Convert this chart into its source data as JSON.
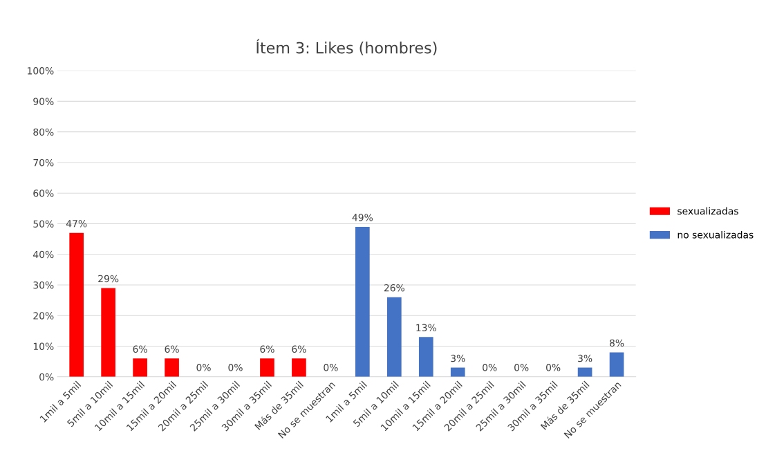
{
  "chart_data": {
    "type": "bar",
    "title": "Ítem 3: Likes (hombres)",
    "categories": [
      "1mil a 5mil",
      "5mil a 10mil",
      "10mil a 15mil",
      "15mil a 20mil",
      "20mil a 25mil",
      "25mil a 30mil",
      "30mil a 35mil",
      "Más de 35mil",
      "No se muestran",
      "1mil a 5mil",
      "5mil a 10mil",
      "10mil a 15mil",
      "15mil a 20mil",
      "20mil a 25mil",
      "25mil a 30mil",
      "30mil a 35mil",
      "Más de 35mil",
      "No se muestran"
    ],
    "series": [
      {
        "name": "sexualizadas",
        "color": "#ff0000",
        "values": [
          47,
          29,
          6,
          6,
          0,
          0,
          6,
          6,
          0,
          null,
          null,
          null,
          null,
          null,
          null,
          null,
          null,
          null
        ],
        "value_labels": [
          "47%",
          "29%",
          "6%",
          "6%",
          "0%",
          "0%",
          "6%",
          "6%",
          "0%",
          null,
          null,
          null,
          null,
          null,
          null,
          null,
          null,
          null
        ]
      },
      {
        "name": "no sexualizadas",
        "color": "#4472c4",
        "values": [
          null,
          null,
          null,
          null,
          null,
          null,
          null,
          null,
          null,
          49,
          26,
          13,
          3,
          0,
          0,
          0,
          3,
          8
        ],
        "value_labels": [
          null,
          null,
          null,
          null,
          null,
          null,
          null,
          null,
          null,
          "49%",
          "26%",
          "13%",
          "3%",
          "0%",
          "0%",
          "0%",
          "3%",
          "8%"
        ]
      }
    ],
    "ylim": [
      0,
      100
    ],
    "yticks": [
      {
        "value": 0,
        "label": "0%"
      },
      {
        "value": 10,
        "label": "10%"
      },
      {
        "value": 20,
        "label": "20%"
      },
      {
        "value": 30,
        "label": "30%"
      },
      {
        "value": 40,
        "label": "40%"
      },
      {
        "value": 50,
        "label": "50%"
      },
      {
        "value": 60,
        "label": "60%"
      },
      {
        "value": 70,
        "label": "70%"
      },
      {
        "value": 80,
        "label": "80%"
      },
      {
        "value": 90,
        "label": "90%"
      },
      {
        "value": 100,
        "label": "100%"
      }
    ],
    "grid": "y",
    "legend": "right"
  }
}
